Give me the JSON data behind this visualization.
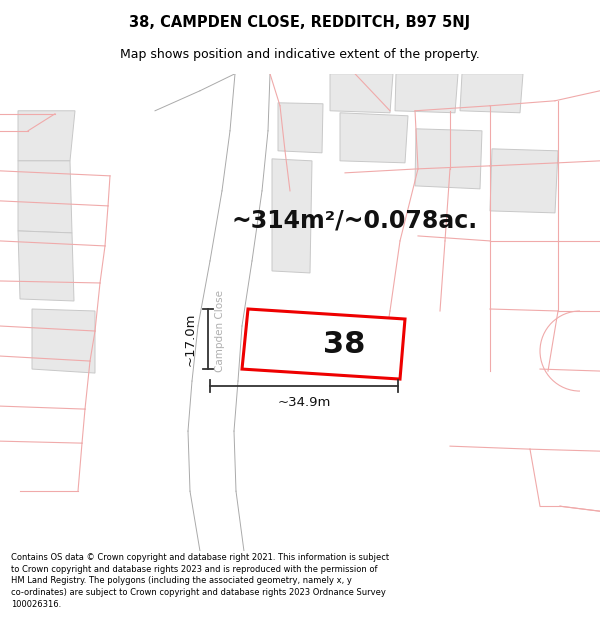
{
  "title_line1": "38, CAMPDEN CLOSE, REDDITCH, B97 5NJ",
  "title_line2": "Map shows position and indicative extent of the property.",
  "area_text": "~314m²/~0.078ac.",
  "label_38": "38",
  "dim_width": "~34.9m",
  "dim_height": "~17.0m",
  "street_label": "Campden Close",
  "footer_text": "Contains OS data © Crown copyright and database right 2021. This information is subject to Crown copyright and database rights 2023 and is reproduced with the permission of HM Land Registry. The polygons (including the associated geometry, namely x, y co-ordinates) are subject to Crown copyright and database rights 2023 Ordnance Survey 100026316.",
  "bg_color": "#ffffff",
  "map_bg": "#ffffff",
  "building_fill": "#e8e8e8",
  "building_edge": "#c8c8c8",
  "road_outline": "#c8c8c8",
  "pink_line": "#f0aaaa",
  "plot_fill": "#ffffff",
  "plot_outline": "#ee0000",
  "dim_line_color": "#333333",
  "street_label_color": "#b0b0b0",
  "title_color": "#000000",
  "footer_color": "#000000",
  "title_fontsize": 10.5,
  "subtitle_fontsize": 9,
  "area_fontsize": 17,
  "label_fontsize": 22,
  "dim_fontsize": 9.5,
  "street_fontsize": 7.5,
  "footer_fontsize": 6.0
}
